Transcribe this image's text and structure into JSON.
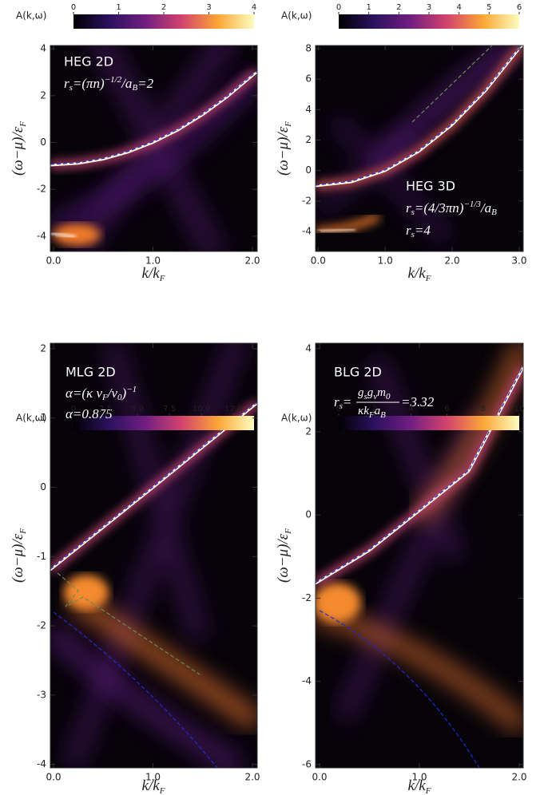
{
  "chart_data": [
    {
      "type": "heatmap",
      "colorbar_label": "A(k,ω)",
      "clim": [
        0,
        4
      ],
      "cticks": [
        0,
        1,
        2,
        3,
        4
      ],
      "xlim": [
        -0.032,
        2.048
      ],
      "xticks": [
        {
          "value": 0,
          "label": "0.0"
        },
        {
          "value": 1,
          "label": "1.0"
        },
        {
          "value": 2,
          "label": "2.0"
        }
      ],
      "ylim": [
        -4.65,
        4.14
      ],
      "yticks": [
        -4,
        -2,
        0,
        2,
        4
      ],
      "xlabel": [
        "k/k",
        "F"
      ],
      "ylabel": [
        "(ω−μ)/ε",
        "F"
      ],
      "annotation": "HEG 2D",
      "formula": [
        "r",
        "s",
        "=(πn)",
        "−1/2",
        "/a",
        "B",
        "=2"
      ]
    },
    {
      "type": "heatmap",
      "colorbar_label": "A(k,ω)",
      "clim": [
        0,
        6
      ],
      "cticks": [
        0,
        1,
        2,
        3,
        4,
        5,
        6
      ],
      "xlim": [
        -0.04,
        3.06
      ],
      "xticks": [
        {
          "value": 0,
          "label": "0.0"
        },
        {
          "value": 1,
          "label": "1.0"
        },
        {
          "value": 2,
          "label": "2.0"
        },
        {
          "value": 3,
          "label": "3.0"
        }
      ],
      "ylim": [
        -5.31,
        8.21
      ],
      "yticks": [
        -4,
        -2,
        0,
        2,
        4,
        6,
        8
      ],
      "xlabel": [
        "k/k",
        "F"
      ],
      "ylabel": [
        "(ω−μ)/ε",
        "F"
      ],
      "annotation": "HEG 3D",
      "formula": [
        "r",
        "s",
        "=(4/3πn)",
        "−1/3",
        "/a",
        "B"
      ],
      "formula2": [
        "r",
        "s",
        "=4"
      ]
    },
    {
      "type": "heatmap",
      "colorbar_label": "A(k,ω)",
      "clim": [
        0,
        14.1
      ],
      "cticks": [
        0,
        2.5,
        {
          "value": 5,
          "label": "5.0"
        },
        7.5,
        {
          "value": 10,
          "label": "10.0"
        },
        12.5
      ],
      "xlim": [
        -0.032,
        2.048
      ],
      "xticks": [
        {
          "value": 0,
          "label": "0.0"
        },
        {
          "value": 1,
          "label": "1.0"
        },
        {
          "value": 2,
          "label": "2.0"
        }
      ],
      "ylim": [
        -4.05,
        2.08
      ],
      "yticks": [
        -4,
        -3,
        -2,
        -1,
        0,
        1,
        2
      ],
      "xlabel": [
        "k/k",
        "F"
      ],
      "ylabel": [
        "(ω−μ)/ε",
        "F"
      ],
      "annotation": "MLG 2D",
      "formula": [
        "α=(κ v",
        "F",
        "/v",
        "0",
        ")",
        "−1"
      ],
      "formula2": [
        "α=0.875"
      ]
    },
    {
      "type": "heatmap",
      "colorbar_label": "A(k,ω)",
      "clim": [
        0,
        10
      ],
      "cticks": [
        0,
        2,
        4,
        6,
        8,
        10
      ],
      "xlim": [
        -0.04,
        2.04
      ],
      "xticks": [
        {
          "value": 0,
          "label": "0.0"
        },
        {
          "value": 1,
          "label": "1.0"
        },
        {
          "value": 2,
          "label": "2.0"
        }
      ],
      "ylim": [
        -6.08,
        4.13
      ],
      "yticks": [
        -6,
        -4,
        -2,
        0,
        2,
        4
      ],
      "xlabel": [
        "k/k",
        "F"
      ],
      "ylabel": [
        "(ω−μ)/ε",
        "F"
      ],
      "annotation": "BLG 2D",
      "formula": [
        "r",
        "s",
        "="
      ],
      "numerator": [
        "g",
        "s",
        "g",
        "v",
        "m",
        "0"
      ],
      "denominator": [
        "κk",
        "F",
        "a",
        "B"
      ],
      "formula_rhs": "=3.32"
    }
  ]
}
